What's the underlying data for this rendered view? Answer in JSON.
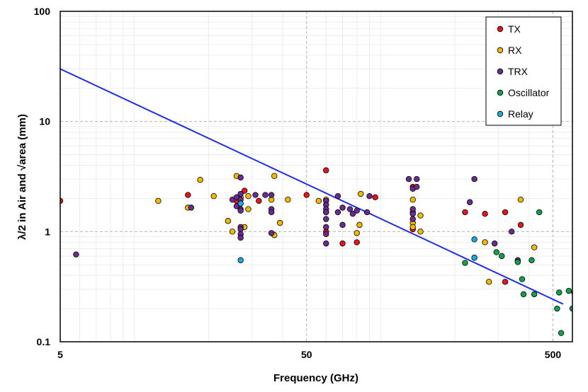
{
  "chart_data": {
    "type": "scatter",
    "xlabel": "Frequency (GHz)",
    "ylabel": "λ/2 in Air and √area (mm)",
    "xscale": "log",
    "yscale": "log",
    "xlim": [
      5,
      600
    ],
    "ylim": [
      0.1,
      100
    ],
    "x_ticks": [
      {
        "value": 5,
        "label": "5"
      },
      {
        "value": 50,
        "label": "50"
      },
      {
        "value": 500,
        "label": "500"
      }
    ],
    "y_ticks": [
      {
        "value": 0.1,
        "label": "0.1"
      },
      {
        "value": 1,
        "label": "1"
      },
      {
        "value": 10,
        "label": "10"
      },
      {
        "value": 100,
        "label": "100"
      }
    ],
    "grid": true,
    "legend_position": "top-right",
    "reference_line": {
      "name": "λ/2 in Air",
      "color": "#1f2fe6",
      "points": [
        [
          5,
          30
        ],
        [
          550,
          0.22
        ]
      ]
    },
    "series": [
      {
        "name": "TX",
        "color": "#e8141c",
        "points": [
          [
            5,
            1.9
          ],
          [
            16.5,
            2.15
          ],
          [
            26,
            1.9
          ],
          [
            28,
            2.35
          ],
          [
            32,
            1.9
          ],
          [
            50,
            2.15
          ],
          [
            60,
            3.6
          ],
          [
            60,
            1.0
          ],
          [
            70,
            0.78
          ],
          [
            80,
            0.8
          ],
          [
            95,
            2.05
          ],
          [
            135,
            2.55
          ],
          [
            135,
            1.05
          ],
          [
            220,
            1.5
          ],
          [
            265,
            1.45
          ],
          [
            320,
            1.5
          ],
          [
            320,
            0.35
          ],
          [
            370,
            1.15
          ]
        ]
      },
      {
        "name": "RX",
        "color": "#f5b800",
        "points": [
          [
            12.5,
            1.9
          ],
          [
            16.5,
            1.65
          ],
          [
            18.5,
            2.95
          ],
          [
            21,
            2.1
          ],
          [
            24,
            1.25
          ],
          [
            25,
            1.0
          ],
          [
            26,
            3.2
          ],
          [
            27,
            2.05
          ],
          [
            28,
            1.1
          ],
          [
            29,
            2.1
          ],
          [
            29,
            1.6
          ],
          [
            36,
            1.95
          ],
          [
            37,
            3.2
          ],
          [
            37,
            0.93
          ],
          [
            39,
            1.2
          ],
          [
            42,
            1.95
          ],
          [
            56,
            1.9
          ],
          [
            60,
            1.95
          ],
          [
            60,
            1.5
          ],
          [
            80,
            0.97
          ],
          [
            82,
            1.15
          ],
          [
            83,
            2.2
          ],
          [
            135,
            1.95
          ],
          [
            135,
            1.5
          ],
          [
            135,
            1.2
          ],
          [
            135,
            1.1
          ],
          [
            145,
            1.4
          ],
          [
            145,
            1.0
          ],
          [
            265,
            0.8
          ],
          [
            275,
            0.35
          ],
          [
            370,
            1.95
          ],
          [
            420,
            0.72
          ]
        ]
      },
      {
        "name": "TRX",
        "color": "#6a2c91",
        "points": [
          [
            5.8,
            0.62
          ],
          [
            17,
            1.65
          ],
          [
            25,
            1.95
          ],
          [
            26,
            2.05
          ],
          [
            26,
            1.7
          ],
          [
            27,
            3.1
          ],
          [
            27,
            2.2
          ],
          [
            27,
            1.95
          ],
          [
            27,
            1.6
          ],
          [
            27,
            1.55
          ],
          [
            27,
            1.1
          ],
          [
            27,
            1.05
          ],
          [
            27,
            0.95
          ],
          [
            27,
            0.88
          ],
          [
            31,
            2.15
          ],
          [
            34,
            2.15
          ],
          [
            36,
            2.15
          ],
          [
            36,
            1.6
          ],
          [
            36,
            1.5
          ],
          [
            36,
            0.97
          ],
          [
            60,
            1.9
          ],
          [
            60,
            1.75
          ],
          [
            60,
            1.6
          ],
          [
            60,
            1.5
          ],
          [
            60,
            1.3
          ],
          [
            60,
            1.1
          ],
          [
            60,
            0.95
          ],
          [
            60,
            0.78
          ],
          [
            67,
            2.1
          ],
          [
            67,
            1.5
          ],
          [
            70,
            1.15
          ],
          [
            70,
            1.65
          ],
          [
            75,
            1.6
          ],
          [
            77,
            1.45
          ],
          [
            80,
            1.55
          ],
          [
            88,
            1.5
          ],
          [
            90,
            2.1
          ],
          [
            130,
            3.0
          ],
          [
            135,
            2.45
          ],
          [
            135,
            1.6
          ],
          [
            135,
            1.45
          ],
          [
            135,
            1.3
          ],
          [
            140,
            3.0
          ],
          [
            140,
            2.55
          ],
          [
            230,
            1.85
          ],
          [
            240,
            3.0
          ],
          [
            290,
            0.78
          ],
          [
            340,
            1.0
          ],
          [
            360,
            0.55
          ]
        ]
      },
      {
        "name": "Oscillator",
        "color": "#12a24a",
        "points": [
          [
            220,
            0.52
          ],
          [
            240,
            0.58
          ],
          [
            295,
            0.65
          ],
          [
            310,
            0.6
          ],
          [
            360,
            0.53
          ],
          [
            375,
            0.37
          ],
          [
            380,
            0.27
          ],
          [
            410,
            0.55
          ],
          [
            420,
            0.27
          ],
          [
            440,
            1.5
          ],
          [
            520,
            0.2
          ],
          [
            530,
            0.28
          ],
          [
            540,
            0.12
          ],
          [
            580,
            0.29
          ],
          [
            600,
            0.2
          ],
          [
            610,
            0.28
          ]
        ]
      },
      {
        "name": "Relay",
        "color": "#1ba9de",
        "points": [
          [
            27,
            1.8
          ],
          [
            27,
            0.55
          ],
          [
            240,
            0.85
          ],
          [
            240,
            0.58
          ]
        ]
      }
    ]
  }
}
